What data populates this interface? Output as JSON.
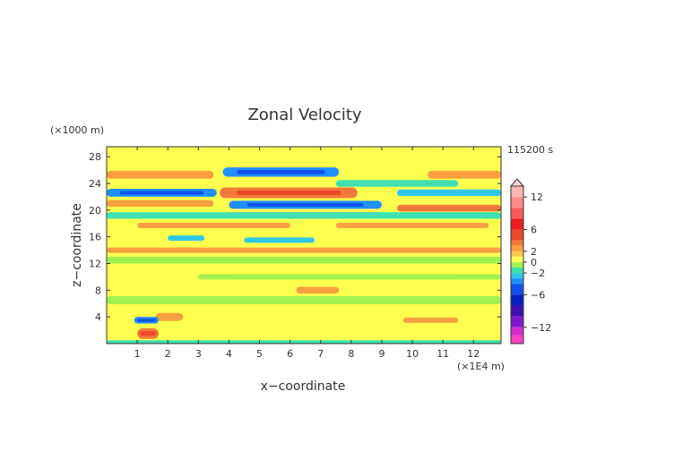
{
  "chart_data": {
    "type": "heatmap",
    "title": "Zonal Velocity",
    "xlabel": "x−coordinate",
    "ylabel": "z−coordinate",
    "x_unit": "(×1E4 m)",
    "y_unit": "(×1000 m)",
    "time_label": "115200 s",
    "xlim": [
      0,
      12.9
    ],
    "ylim": [
      0,
      29.5
    ],
    "x_ticks": [
      1,
      2,
      3,
      4,
      5,
      6,
      7,
      8,
      9,
      10,
      11,
      12
    ],
    "y_ticks": [
      4,
      8,
      12,
      16,
      20,
      24,
      28
    ],
    "colorbar": {
      "tick_values": [
        12,
        6,
        2,
        0,
        -2,
        -6,
        -12
      ],
      "tick_labels": [
        "12",
        "6",
        "2",
        "0",
        "−2",
        "−6",
        "−12"
      ],
      "min": -15,
      "max": 14,
      "levels": [
        {
          "lo": 12,
          "hi": 14,
          "color": "#ffb3b3"
        },
        {
          "lo": 10,
          "hi": 12,
          "color": "#ff8c8c"
        },
        {
          "lo": 8,
          "hi": 10,
          "color": "#ff5a5a"
        },
        {
          "lo": 6,
          "hi": 8,
          "color": "#f01e1e"
        },
        {
          "lo": 4,
          "hi": 6,
          "color": "#e84a2a"
        },
        {
          "lo": 3,
          "hi": 4,
          "color": "#f07a3a"
        },
        {
          "lo": 2,
          "hi": 3,
          "color": "#f8a040"
        },
        {
          "lo": 1,
          "hi": 2,
          "color": "#ffc850"
        },
        {
          "lo": 0,
          "hi": 1,
          "color": "#ffff50"
        },
        {
          "lo": -1,
          "hi": 0,
          "color": "#a0f050"
        },
        {
          "lo": -2,
          "hi": -1,
          "color": "#40e0b0"
        },
        {
          "lo": -3,
          "hi": -2,
          "color": "#30c8e8"
        },
        {
          "lo": -4,
          "hi": -3,
          "color": "#2090ff"
        },
        {
          "lo": -6,
          "hi": -4,
          "color": "#1050f0"
        },
        {
          "lo": -8,
          "hi": -6,
          "color": "#0820c0"
        },
        {
          "lo": -10,
          "hi": -8,
          "color": "#4010b0"
        },
        {
          "lo": -12,
          "hi": -10,
          "color": "#8018c8"
        },
        {
          "lo": -13.5,
          "hi": -12,
          "color": "#d030d0"
        },
        {
          "lo": -15,
          "hi": -13.5,
          "color": "#ff40c0"
        }
      ]
    },
    "bands": [
      {
        "z_center": 27.5,
        "half_width": 0.8,
        "x_start": 0.0,
        "x_end": 12.9,
        "value": 0.5
      },
      {
        "z_center": 25.7,
        "half_width": 0.7,
        "x_start": 3.8,
        "x_end": 7.6,
        "value": -4
      },
      {
        "z_center": 25.3,
        "half_width": 0.6,
        "x_start": 0.0,
        "x_end": 3.5,
        "value": 2.5
      },
      {
        "z_center": 25.3,
        "half_width": 0.6,
        "x_start": 10.5,
        "x_end": 12.9,
        "value": 2.5
      },
      {
        "z_center": 24.0,
        "half_width": 0.5,
        "x_start": 7.5,
        "x_end": 11.5,
        "value": -1.5
      },
      {
        "z_center": 22.6,
        "half_width": 0.8,
        "x_start": 3.7,
        "x_end": 8.2,
        "value": 3.5
      },
      {
        "z_center": 22.6,
        "half_width": 0.6,
        "x_start": 0.0,
        "x_end": 3.6,
        "value": -3.5
      },
      {
        "z_center": 22.6,
        "half_width": 0.5,
        "x_start": 9.5,
        "x_end": 12.9,
        "value": -2.5
      },
      {
        "z_center": 20.8,
        "half_width": 0.6,
        "x_start": 4.0,
        "x_end": 9.0,
        "value": -3.5
      },
      {
        "z_center": 21.0,
        "half_width": 0.5,
        "x_start": 0.0,
        "x_end": 3.5,
        "value": 2.5
      },
      {
        "z_center": 20.3,
        "half_width": 0.5,
        "x_start": 9.5,
        "x_end": 12.9,
        "value": 3
      },
      {
        "z_center": 19.2,
        "half_width": 0.5,
        "x_start": 0.0,
        "x_end": 12.9,
        "value": -1.5
      },
      {
        "z_center": 17.7,
        "half_width": 0.4,
        "x_start": 1.0,
        "x_end": 6.0,
        "value": 2.5
      },
      {
        "z_center": 17.7,
        "half_width": 0.4,
        "x_start": 7.5,
        "x_end": 12.5,
        "value": 2.5
      },
      {
        "z_center": 15.8,
        "half_width": 0.4,
        "x_start": 2.0,
        "x_end": 3.2,
        "value": -2.5
      },
      {
        "z_center": 15.5,
        "half_width": 0.4,
        "x_start": 4.5,
        "x_end": 6.8,
        "value": -2.5
      },
      {
        "z_center": 14.0,
        "half_width": 0.4,
        "x_start": 0.0,
        "x_end": 12.9,
        "value": 2.5
      },
      {
        "z_center": 12.5,
        "half_width": 0.5,
        "x_start": 0.0,
        "x_end": 12.9,
        "value": -0.5
      },
      {
        "z_center": 10.0,
        "half_width": 0.4,
        "x_start": 3.0,
        "x_end": 12.9,
        "value": -0.5
      },
      {
        "z_center": 8.0,
        "half_width": 0.5,
        "x_start": 6.2,
        "x_end": 7.6,
        "value": 2.5
      },
      {
        "z_center": 6.5,
        "half_width": 0.6,
        "x_start": 0.0,
        "x_end": 12.9,
        "value": -0.5
      },
      {
        "z_center": 3.5,
        "half_width": 0.4,
        "x_start": 9.7,
        "x_end": 11.5,
        "value": 2.5
      },
      {
        "z_center": 4.0,
        "half_width": 0.6,
        "x_start": 1.6,
        "x_end": 2.5,
        "value": 2.5
      },
      {
        "z_center": 3.5,
        "half_width": 0.5,
        "x_start": 0.9,
        "x_end": 1.7,
        "value": -4
      },
      {
        "z_center": 1.5,
        "half_width": 0.8,
        "x_start": 1.0,
        "x_end": 1.7,
        "value": 3.5
      },
      {
        "z_center": 0.2,
        "half_width": 0.3,
        "x_start": 0.0,
        "x_end": 12.9,
        "value": -1.5
      }
    ]
  }
}
